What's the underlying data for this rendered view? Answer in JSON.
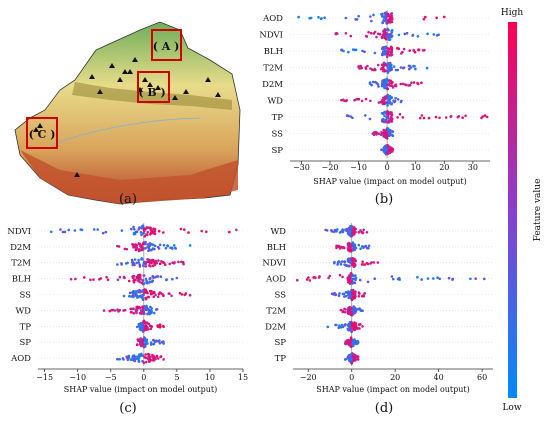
{
  "panels": {
    "a": {
      "label": "(a)",
      "boxes": [
        "( A )",
        "( B )",
        "( C )"
      ]
    },
    "b": {
      "label": "(b)"
    },
    "c": {
      "label": "(c)"
    },
    "d": {
      "label": "(d)"
    }
  },
  "colorbar": {
    "high": "High",
    "low": "Low",
    "title": "Feature value",
    "color_high": "#ff0052",
    "color_low": "#008bfb"
  },
  "chart_data": [
    {
      "type": "scatter",
      "panel": "(b)",
      "xlabel": "SHAP value (impact on model output)",
      "xlim": [
        -34,
        36
      ],
      "xticks": [
        -30,
        -20,
        -10,
        0,
        10,
        20,
        30
      ],
      "features": [
        "AOD",
        "NDVI",
        "BLH",
        "T2M",
        "D2M",
        "WD",
        "TP",
        "SS",
        "SP"
      ],
      "ranges": [
        [
          -31,
          20
        ],
        [
          -18,
          18
        ],
        [
          -16,
          13
        ],
        [
          -10,
          14
        ],
        [
          -6,
          12
        ],
        [
          -16,
          5
        ],
        [
          -14,
          35
        ],
        [
          -5,
          2
        ],
        [
          -2,
          2
        ]
      ]
    },
    {
      "type": "scatter",
      "panel": "(c)",
      "xlabel": "SHAP value (impact on model output)",
      "xlim": [
        -16,
        15
      ],
      "xticks": [
        -15,
        -10,
        -5,
        0,
        5,
        10,
        15
      ],
      "features": [
        "NDVI",
        "D2M",
        "T2M",
        "BLH",
        "SS",
        "WD",
        "TP",
        "SP",
        "AOD"
      ],
      "ranges": [
        [
          -14,
          14
        ],
        [
          -4,
          7
        ],
        [
          -4,
          6
        ],
        [
          -11,
          5
        ],
        [
          -3,
          7
        ],
        [
          -6,
          2
        ],
        [
          -1,
          3
        ],
        [
          -1,
          3
        ],
        [
          -4,
          3
        ]
      ]
    },
    {
      "type": "scatter",
      "panel": "(d)",
      "xlabel": "SHAP value (impact on model output)",
      "xlim": [
        -27,
        65
      ],
      "xticks": [
        -20,
        0,
        20,
        40,
        60
      ],
      "features": [
        "WD",
        "BLH",
        "NDVI",
        "AOD",
        "SS",
        "T2M",
        "D2M",
        "SP",
        "TP"
      ],
      "ranges": [
        [
          -12,
          7
        ],
        [
          -7,
          8
        ],
        [
          -8,
          12
        ],
        [
          -25,
          61
        ],
        [
          -9,
          6
        ],
        [
          -5,
          5
        ],
        [
          -11,
          5
        ],
        [
          -3,
          3
        ],
        [
          -3,
          3
        ]
      ]
    }
  ]
}
